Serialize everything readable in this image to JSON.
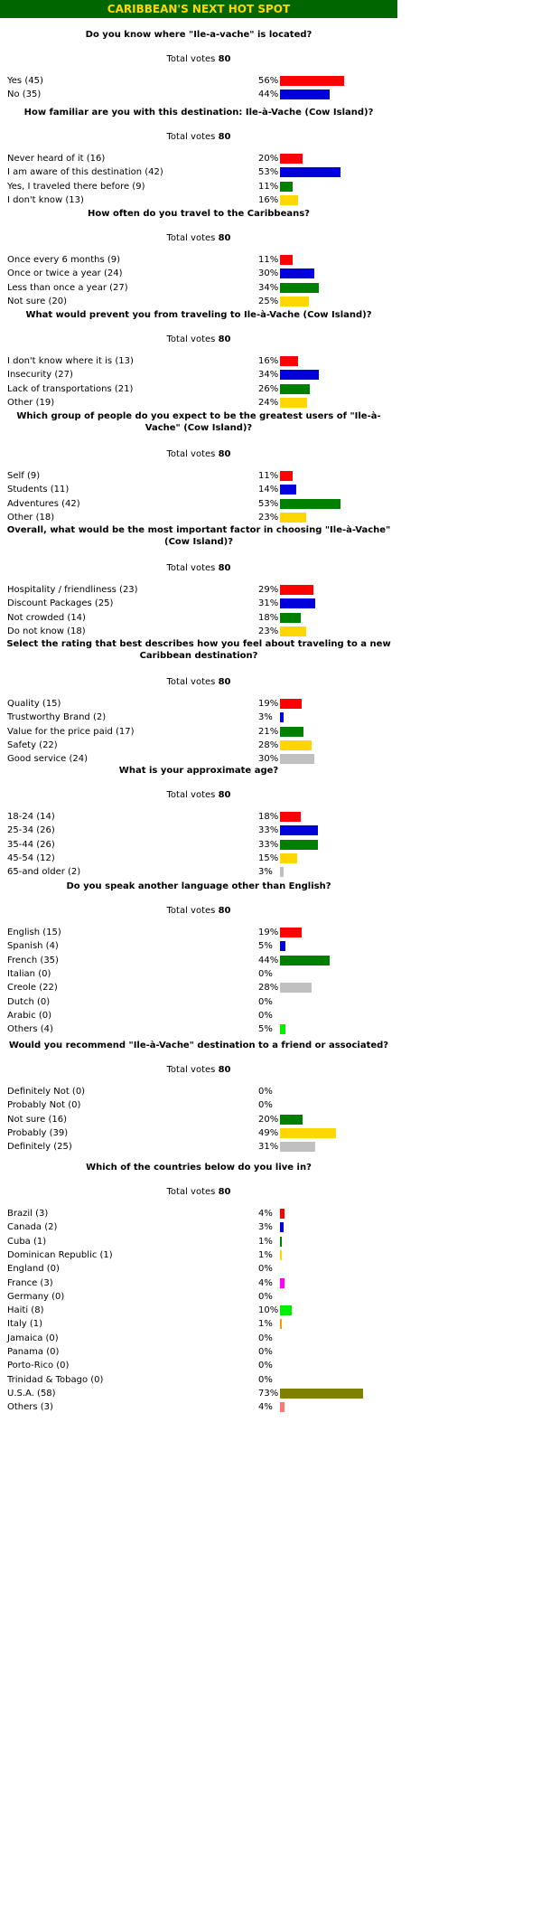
{
  "banner": "CARIBBEAN'S NEXT HOT SPOT",
  "total_label": "Total votes",
  "colors": {
    "red": "#ff0000",
    "blue": "#0000dd",
    "green": "#008000",
    "yellow": "#ffd700",
    "gray": "#c0c0c0",
    "lime": "#00ee00",
    "magenta": "#ff00ff",
    "orange": "#ff9900",
    "olive": "#808000",
    "salmon": "#ff7777"
  },
  "polls": [
    {
      "question": "Do you know where \"Ile-a-vache\" is located?",
      "total": "80",
      "options": [
        {
          "label": "Yes (45)",
          "pct": "56%",
          "value": 56,
          "color": "#ff0000"
        },
        {
          "label": "No (35)",
          "pct": "44%",
          "value": 44,
          "color": "#0000dd"
        }
      ]
    },
    {
      "question": "How familiar are you with this destination: Ile-à-Vache (Cow Island)?",
      "total": "80",
      "options": [
        {
          "label": "Never heard of it (16)",
          "pct": "20%",
          "value": 20,
          "color": "#ff0000"
        },
        {
          "label": "I am aware of this destination (42)",
          "pct": "53%",
          "value": 53,
          "color": "#0000dd"
        },
        {
          "label": "Yes, I traveled there before (9)",
          "pct": "11%",
          "value": 11,
          "color": "#008000"
        },
        {
          "label": "I don't know (13)",
          "pct": "16%",
          "value": 16,
          "color": "#ffd700"
        }
      ]
    },
    {
      "question": "How often do you travel to the Caribbeans?",
      "total": "80",
      "options": [
        {
          "label": "Once every 6 months (9)",
          "pct": "11%",
          "value": 11,
          "color": "#ff0000"
        },
        {
          "label": "Once or twice a year (24)",
          "pct": "30%",
          "value": 30,
          "color": "#0000dd"
        },
        {
          "label": "Less than once a year (27)",
          "pct": "34%",
          "value": 34,
          "color": "#008000"
        },
        {
          "label": "Not sure (20)",
          "pct": "25%",
          "value": 25,
          "color": "#ffd700"
        }
      ]
    },
    {
      "question": "What would prevent you from traveling to Ile-à-Vache (Cow Island)?",
      "total": "80",
      "options": [
        {
          "label": "I don't know where it is (13)",
          "pct": "16%",
          "value": 16,
          "color": "#ff0000"
        },
        {
          "label": "Insecurity (27)",
          "pct": "34%",
          "value": 34,
          "color": "#0000dd"
        },
        {
          "label": "Lack of transportations (21)",
          "pct": "26%",
          "value": 26,
          "color": "#008000"
        },
        {
          "label": "Other (19)",
          "pct": "24%",
          "value": 24,
          "color": "#ffd700"
        }
      ]
    },
    {
      "question": "Which group of people do you expect to be the greatest users of \"Ile-à-Vache\" (Cow Island)?",
      "total": "80",
      "options": [
        {
          "label": "Self (9)",
          "pct": "11%",
          "value": 11,
          "color": "#ff0000"
        },
        {
          "label": "Students (11)",
          "pct": "14%",
          "value": 14,
          "color": "#0000dd"
        },
        {
          "label": "Adventures (42)",
          "pct": "53%",
          "value": 53,
          "color": "#008000"
        },
        {
          "label": "Other (18)",
          "pct": "23%",
          "value": 23,
          "color": "#ffd700"
        }
      ]
    },
    {
      "question": "Overall, what would be the most important factor in choosing \"Ile-à-Vache\" (Cow Island)?",
      "total": "80",
      "options": [
        {
          "label": "Hospitality / friendliness (23)",
          "pct": "29%",
          "value": 29,
          "color": "#ff0000"
        },
        {
          "label": "Discount Packages (25)",
          "pct": "31%",
          "value": 31,
          "color": "#0000dd"
        },
        {
          "label": "Not crowded (14)",
          "pct": "18%",
          "value": 18,
          "color": "#008000"
        },
        {
          "label": "Do not know (18)",
          "pct": "23%",
          "value": 23,
          "color": "#ffd700"
        }
      ]
    },
    {
      "question": "Select the rating that best describes how you feel about traveling to a new Caribbean destination?",
      "total": "80",
      "options": [
        {
          "label": "Quality (15)",
          "pct": "19%",
          "value": 19,
          "color": "#ff0000"
        },
        {
          "label": "Trustworthy Brand (2)",
          "pct": "3%",
          "value": 3,
          "color": "#0000dd"
        },
        {
          "label": "Value for the price paid (17)",
          "pct": "21%",
          "value": 21,
          "color": "#008000"
        },
        {
          "label": "Safety (22)",
          "pct": "28%",
          "value": 28,
          "color": "#ffd700"
        },
        {
          "label": "Good service (24)",
          "pct": "30%",
          "value": 30,
          "color": "#c0c0c0"
        }
      ]
    },
    {
      "question": "What is your approximate age?",
      "total": "80",
      "options": [
        {
          "label": "18-24 (14)",
          "pct": "18%",
          "value": 18,
          "color": "#ff0000"
        },
        {
          "label": "25-34 (26)",
          "pct": "33%",
          "value": 33,
          "color": "#0000dd"
        },
        {
          "label": "35-44 (26)",
          "pct": "33%",
          "value": 33,
          "color": "#008000"
        },
        {
          "label": "45-54 (12)",
          "pct": "15%",
          "value": 15,
          "color": "#ffd700"
        },
        {
          "label": "65-and older (2)",
          "pct": "3%",
          "value": 3,
          "color": "#c0c0c0"
        }
      ]
    },
    {
      "question": "Do you speak another language other than English?",
      "total": "80",
      "options": [
        {
          "label": "English (15)",
          "pct": "19%",
          "value": 19,
          "color": "#ff0000"
        },
        {
          "label": "Spanish (4)",
          "pct": "5%",
          "value": 5,
          "color": "#0000dd"
        },
        {
          "label": "French (35)",
          "pct": "44%",
          "value": 44,
          "color": "#008000"
        },
        {
          "label": "Italian (0)",
          "pct": "0%",
          "value": 0,
          "color": "#ffd700"
        },
        {
          "label": "Creole (22)",
          "pct": "28%",
          "value": 28,
          "color": "#c0c0c0"
        },
        {
          "label": "Dutch (0)",
          "pct": "0%",
          "value": 0,
          "color": "#ff00ff"
        },
        {
          "label": "Arabic (0)",
          "pct": "0%",
          "value": 0,
          "color": "#ff9900"
        },
        {
          "label": "Others (4)",
          "pct": "5%",
          "value": 5,
          "color": "#00ee00"
        }
      ]
    },
    {
      "question": "Would you recommend \"Ile-à-Vache\" destination to a friend or associated?",
      "total": "80",
      "options": [
        {
          "label": "Definitely Not (0)",
          "pct": "0%",
          "value": 0,
          "color": "#ff0000"
        },
        {
          "label": "Probably Not (0)",
          "pct": "0%",
          "value": 0,
          "color": "#0000dd"
        },
        {
          "label": "Not sure (16)",
          "pct": "20%",
          "value": 20,
          "color": "#008000"
        },
        {
          "label": "Probably (39)",
          "pct": "49%",
          "value": 49,
          "color": "#ffd700"
        },
        {
          "label": "Definitely (25)",
          "pct": "31%",
          "value": 31,
          "color": "#c0c0c0"
        }
      ]
    },
    {
      "question": "Which of the countries below do you live in?",
      "total": "80",
      "options": [
        {
          "label": "Brazil (3)",
          "pct": "4%",
          "value": 4,
          "color": "#ff0000"
        },
        {
          "label": "Canada (2)",
          "pct": "3%",
          "value": 3,
          "color": "#0000dd"
        },
        {
          "label": "Cuba (1)",
          "pct": "1%",
          "value": 1,
          "color": "#008000"
        },
        {
          "label": "Dominican Republic (1)",
          "pct": "1%",
          "value": 1,
          "color": "#ffd700"
        },
        {
          "label": "England (0)",
          "pct": "0%",
          "value": 0,
          "color": "#c0c0c0"
        },
        {
          "label": "France (3)",
          "pct": "4%",
          "value": 4,
          "color": "#ff00ff"
        },
        {
          "label": "Germany (0)",
          "pct": "0%",
          "value": 0,
          "color": "#ff9900"
        },
        {
          "label": "Haiti (8)",
          "pct": "10%",
          "value": 10,
          "color": "#00ee00"
        },
        {
          "label": "Italy (1)",
          "pct": "1%",
          "value": 1,
          "color": "#ff9900"
        },
        {
          "label": "Jamaica (0)",
          "pct": "0%",
          "value": 0,
          "color": "#ffd700"
        },
        {
          "label": "Panama (0)",
          "pct": "0%",
          "value": 0,
          "color": "#0000dd"
        },
        {
          "label": "Porto-Rico (0)",
          "pct": "0%",
          "value": 0,
          "color": "#008000"
        },
        {
          "label": "Trinidad & Tobago (0)",
          "pct": "0%",
          "value": 0,
          "color": "#c0c0c0"
        },
        {
          "label": "U.S.A. (58)",
          "pct": "73%",
          "value": 73,
          "color": "#808000"
        },
        {
          "label": "Others (3)",
          "pct": "4%",
          "value": 4,
          "color": "#ff7777"
        }
      ]
    }
  ]
}
